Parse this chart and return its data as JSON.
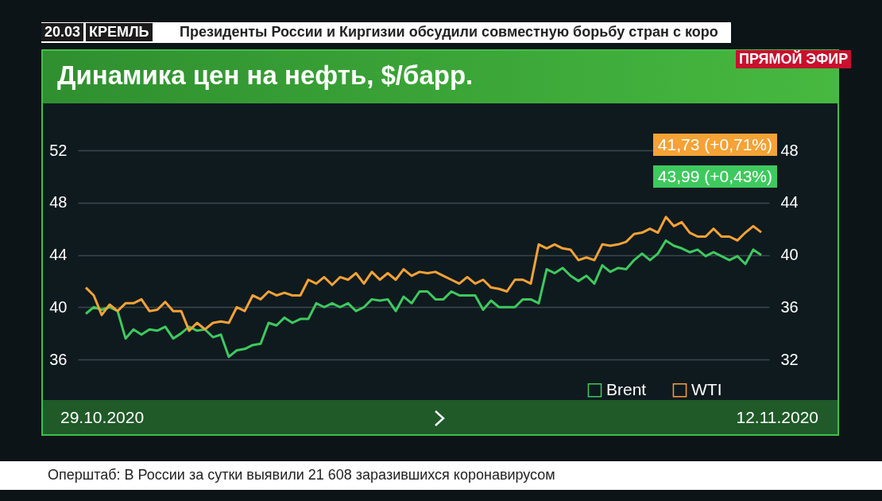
{
  "chart_data": {
    "type": "line",
    "title": "Динамика цен на нефть, $/барр.",
    "annotations": [
      "20.03",
      "КРЕМЛЬ",
      "Президенты России и Киргизии обсудили совместную борьбу  стран с коро",
      "ПРЯМОЙ ЭФИР",
      "Оперштаб: В России за сутки выявили 21 608 заразившихся коронавирусом",
      "41,73 (+0,71%)",
      "43,99 (+0,43%)",
      "29.10.2020",
      "12.11.2020"
    ],
    "categories": [
      null,
      null,
      null,
      null,
      null,
      null,
      null,
      null,
      null,
      null,
      null,
      null,
      null,
      null,
      null,
      null,
      null,
      null,
      null,
      null,
      null,
      null,
      null,
      null,
      null,
      null,
      null,
      null,
      null,
      null,
      null,
      null,
      null,
      null,
      null,
      null,
      null,
      null,
      null,
      null,
      null,
      null,
      null,
      null,
      null,
      null,
      null,
      null,
      null,
      null,
      null,
      null,
      null,
      null,
      null,
      null,
      null,
      null,
      null,
      null,
      null,
      null,
      null,
      null,
      null,
      null,
      null,
      null,
      null,
      null,
      null,
      null,
      null,
      null,
      null,
      null,
      null,
      null,
      null,
      null,
      null,
      null,
      null,
      null,
      null,
      null
    ],
    "ylim": [
      36,
      52
    ],
    "yticks": [
      36,
      40,
      44,
      48,
      52
    ],
    "y2lim": [
      32,
      48
    ],
    "y2ticks": [
      32,
      36,
      40,
      44,
      48
    ],
    "grid": "y",
    "legend": "bottom right",
    "series": [
      {
        "name": "Brent",
        "color": "#3ec95e",
        "values": [
          39.5,
          40.0,
          39.8,
          40.0,
          39.7,
          37.6,
          38.3,
          37.9,
          38.3,
          38.2,
          38.5,
          37.6,
          38.0,
          38.5,
          38.2,
          38.3,
          37.7,
          37.9,
          36.2,
          36.7,
          36.8,
          37.1,
          37.2,
          38.8,
          38.6,
          39.2,
          38.8,
          39.1,
          39.1,
          40.3,
          40.0,
          40.3,
          40.0,
          40.3,
          39.7,
          40.0,
          40.6,
          40.5,
          40.6,
          39.7,
          40.8,
          40.3,
          41.2,
          41.2,
          40.6,
          40.6,
          41.2,
          40.9,
          40.9,
          40.9,
          39.8,
          40.5,
          40.0,
          40.0,
          40.0,
          40.6,
          40.6,
          40.3,
          42.9,
          42.6,
          43.0,
          42.4,
          42.0,
          42.4,
          41.8,
          43.2,
          42.7,
          43.0,
          42.9,
          43.6,
          44.1,
          43.6,
          44.1,
          45.1,
          44.7,
          44.5,
          44.2,
          44.4,
          43.9,
          44.2,
          43.9,
          43.6,
          43.9,
          43.3,
          44.4,
          43.99
        ]
      },
      {
        "name": "WTI",
        "color": "#f5a236",
        "axis": "y2",
        "values": [
          37.5,
          36.9,
          35.4,
          36.2,
          35.7,
          36.3,
          36.3,
          36.6,
          35.7,
          35.8,
          36.4,
          35.7,
          35.7,
          34.2,
          34.8,
          34.3,
          34.8,
          34.9,
          34.8,
          36.0,
          35.7,
          36.9,
          36.6,
          37.2,
          36.9,
          37.1,
          36.9,
          36.9,
          38.1,
          37.8,
          38.3,
          37.7,
          38.3,
          38.1,
          38.6,
          37.8,
          38.7,
          38.1,
          38.6,
          38.1,
          38.9,
          38.4,
          38.7,
          38.6,
          38.7,
          38.4,
          38.1,
          37.8,
          38.3,
          37.8,
          38.1,
          37.5,
          37.4,
          37.2,
          38.1,
          38.1,
          37.8,
          40.8,
          40.5,
          40.8,
          40.5,
          40.4,
          39.6,
          39.8,
          39.6,
          40.8,
          40.7,
          40.8,
          41.0,
          41.6,
          41.7,
          42.0,
          41.7,
          42.9,
          42.2,
          42.5,
          41.7,
          41.4,
          41.4,
          42.0,
          41.4,
          41.4,
          41.1,
          41.7,
          42.2,
          41.73
        ]
      }
    ]
  }
}
